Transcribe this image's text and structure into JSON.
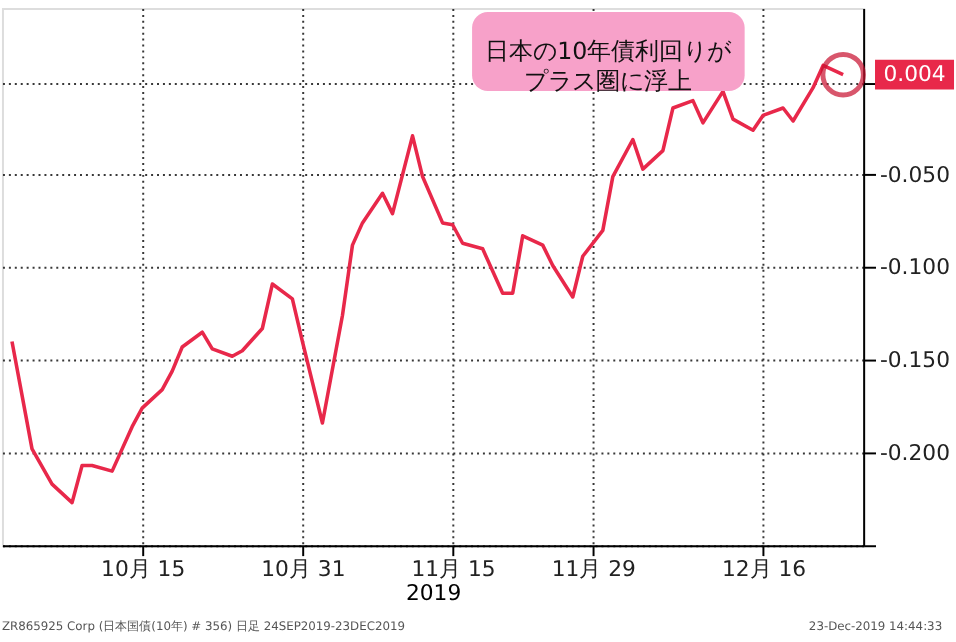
{
  "chart_data": {
    "type": "line",
    "xlabel": "2019",
    "x": [
      "2019-10-02",
      "2019-10-03",
      "2019-10-04",
      "2019-10-06",
      "2019-10-08",
      "2019-10-09",
      "2019-10-10",
      "2019-10-12",
      "2019-10-14",
      "2019-10-15",
      "2019-10-17",
      "2019-10-18",
      "2019-10-19",
      "2019-10-21",
      "2019-10-22",
      "2019-10-24",
      "2019-10-25",
      "2019-10-27",
      "2019-10-28",
      "2019-10-30",
      "2019-10-31",
      "2019-11-02",
      "2019-11-04",
      "2019-11-05",
      "2019-11-06",
      "2019-11-08",
      "2019-11-09",
      "2019-11-11",
      "2019-11-12",
      "2019-11-14",
      "2019-11-15",
      "2019-11-16",
      "2019-11-18",
      "2019-11-20",
      "2019-11-21",
      "2019-11-22",
      "2019-11-24",
      "2019-11-25",
      "2019-11-27",
      "2019-11-28",
      "2019-11-30",
      "2019-12-01",
      "2019-12-03",
      "2019-12-04",
      "2019-12-06",
      "2019-12-07",
      "2019-12-09",
      "2019-12-10",
      "2019-12-12",
      "2019-12-13",
      "2019-12-15",
      "2019-12-16",
      "2019-12-18",
      "2019-12-19",
      "2019-12-21",
      "2019-12-22",
      "2019-12-24"
    ],
    "series": [
      {
        "color": "#e8284a",
        "values": [
          -0.14,
          -0.169,
          -0.198,
          -0.217,
          -0.227,
          -0.207,
          -0.207,
          -0.21,
          -0.186,
          -0.176,
          -0.166,
          -0.156,
          -0.143,
          -0.135,
          -0.144,
          -0.148,
          -0.145,
          -0.133,
          -0.109,
          -0.117,
          -0.14,
          -0.184,
          -0.126,
          -0.088,
          -0.076,
          -0.06,
          -0.071,
          -0.029,
          -0.051,
          -0.076,
          -0.077,
          -0.087,
          -0.09,
          -0.114,
          -0.114,
          -0.083,
          -0.088,
          -0.099,
          -0.116,
          -0.094,
          -0.08,
          -0.051,
          -0.031,
          -0.047,
          -0.037,
          -0.014,
          -0.01,
          -0.022,
          -0.005,
          -0.02,
          -0.026,
          -0.018,
          -0.014,
          -0.021,
          -0.003,
          0.009,
          0.004
        ]
      }
    ],
    "xlim": [
      "2019-10-01",
      "2019-12-26"
    ],
    "xticks": [
      {
        "value": "2019-10-15",
        "label": "10月 15"
      },
      {
        "value": "2019-10-31",
        "label": "10月 31"
      },
      {
        "value": "2019-11-15",
        "label": "11月 15"
      },
      {
        "value": "2019-11-29",
        "label": "11月 29"
      },
      {
        "value": "2019-12-16",
        "label": "12月 16"
      }
    ],
    "ylim": [
      -0.25,
      0.04
    ],
    "yticks": [
      {
        "value": 0,
        "label": null
      },
      {
        "value": -0.05,
        "label": "-0.050"
      },
      {
        "value": -0.1,
        "label": "-0.100"
      },
      {
        "value": -0.15,
        "label": "-0.150"
      },
      {
        "value": -0.2,
        "label": "-0.200"
      },
      {
        "value": -0.25,
        "label": null
      }
    ],
    "grid": true,
    "marker": "none",
    "line_style": "solid",
    "annotations": [
      "日本の10年債利回りがプラス圏に浮上",
      {
        "text": "0.004",
        "x": "2019-12-24",
        "y": 0.004
      },
      "ZR865925 Corp (日本国債(10年) # 356) 日足 24SEP2019-23DEC2019",
      "23-Dec-2019 14:44:33"
    ]
  }
}
